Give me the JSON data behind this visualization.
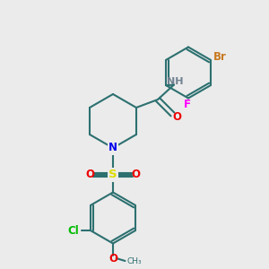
{
  "bg_color": "#ebebeb",
  "bond_color": "#2d7070",
  "bond_lw": 1.5,
  "atom_colors": {
    "Br": "#c87820",
    "F": "#ff00ff",
    "N": "#0000ee",
    "O": "#ee0000",
    "S": "#dddd00",
    "Cl": "#00bb00",
    "H": "#708090"
  },
  "font_size": 8.5,
  "label_font_size": 8.5
}
